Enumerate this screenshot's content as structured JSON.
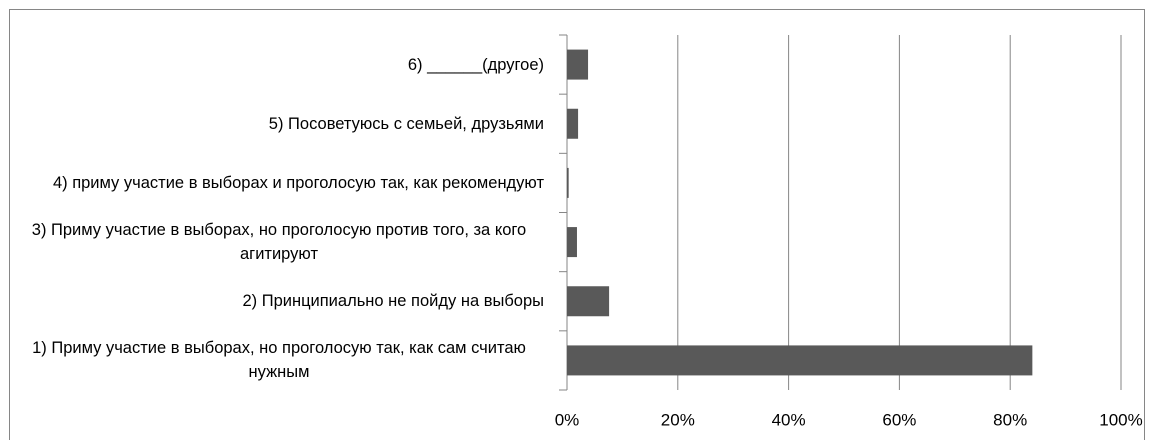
{
  "chart_data": {
    "type": "hbar",
    "categories": [
      "1) Приму участие в выборах, но проголосую так, как сам считаю нужным",
      "2) Принципиально не пойду на выборы",
      "3) Приму участие в выборах, но проголосую против того, за кого агитируют",
      "4) приму участие в выборах и проголосую так, как рекомендуют",
      "5) Посоветуюсь с семьей, друзьями",
      "6) ______(другое)"
    ],
    "values": [
      84,
      7.6,
      1.8,
      0.3,
      2.0,
      3.8
    ],
    "color": "#595959",
    "xlim": [
      0,
      100
    ],
    "xticks": [
      {
        "value": 0,
        "label": "0%"
      },
      {
        "value": 20,
        "label": "20%"
      },
      {
        "value": 40,
        "label": "40%"
      },
      {
        "value": 60,
        "label": "60%"
      },
      {
        "value": 80,
        "label": "80%"
      },
      {
        "value": 100,
        "label": "100%"
      }
    ],
    "grid": true
  }
}
